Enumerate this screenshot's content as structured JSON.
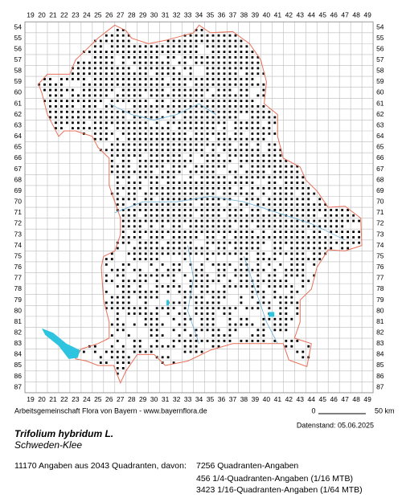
{
  "map": {
    "x_labels": [
      19,
      20,
      21,
      22,
      23,
      24,
      25,
      26,
      27,
      28,
      29,
      30,
      31,
      32,
      33,
      34,
      35,
      36,
      37,
      38,
      39,
      40,
      41,
      42,
      43,
      44,
      45,
      46,
      47,
      48,
      49
    ],
    "y_labels": [
      54,
      55,
      56,
      57,
      58,
      59,
      60,
      61,
      62,
      63,
      64,
      65,
      66,
      67,
      68,
      69,
      70,
      71,
      72,
      73,
      74,
      75,
      76,
      77,
      78,
      79,
      80,
      81,
      82,
      83,
      84,
      85,
      86,
      87
    ]
  },
  "footer": {
    "credit": "Arbeitsgemeinschaft Flora von Bayern - www.bayernflora.de",
    "scale_start": "0",
    "scale_end": "50 km",
    "date": "Datenstand: 05.06.2025"
  },
  "species": {
    "scientific_name": "Trifolium hybridum L.",
    "common_name": "Schweden-Klee"
  },
  "stats": {
    "summary": "11170 Angaben aus 2043 Quadranten, davon:",
    "lines": [
      "7256 Quadranten-Angaben",
      "456 1/4-Quadranten-Angaben (1/16 MTB)",
      "3423 1/16-Quadranten-Angaben (1/64 MTB)"
    ]
  }
}
